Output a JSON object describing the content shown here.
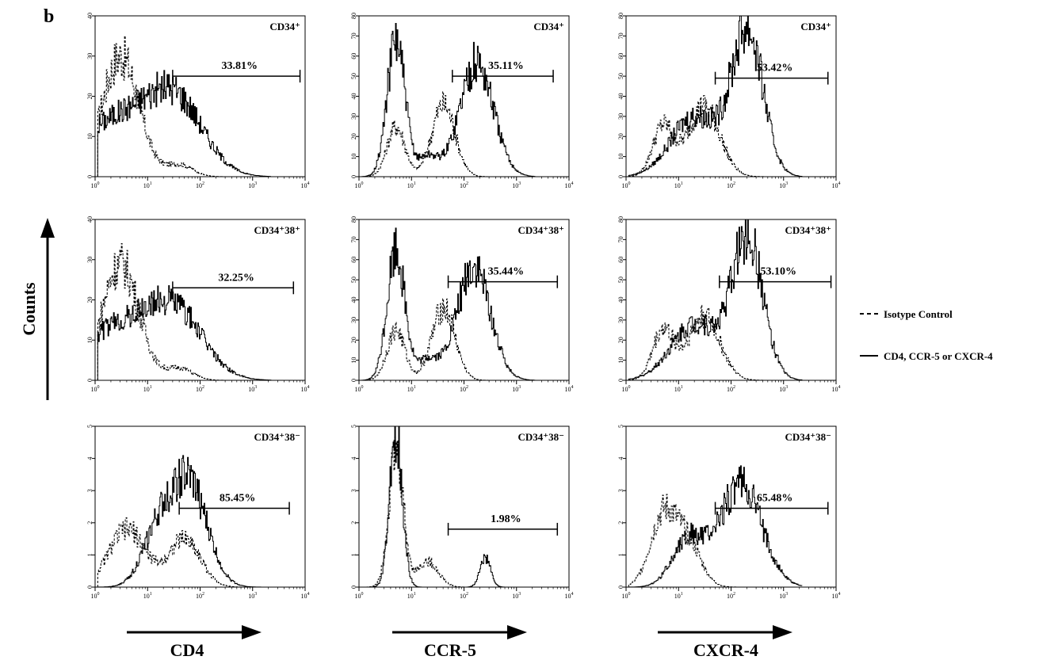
{
  "figure": {
    "panel_letter": "b",
    "y_axis_label": "Counts",
    "x_axis_labels": [
      "CD4",
      "CCR-5",
      "CXCR-4"
    ],
    "legend": {
      "isotype": "Isotype Control",
      "marker": "CD4, CCR-5 or CXCR-4"
    },
    "colors": {
      "ink": "#000000",
      "background": "#ffffff"
    }
  },
  "chart_data": [
    {
      "type": "histogram",
      "row": 0,
      "col": 0,
      "population_label": "CD34⁺",
      "percent_label": "33.81%",
      "x_scale": "log",
      "xlim": [
        1,
        10000
      ],
      "ylim": [
        0,
        40
      ],
      "y_ticks": [
        0,
        10,
        20,
        30,
        40
      ],
      "gate": [
        30,
        8000
      ],
      "gate_y": 25,
      "solid_peaks": [
        {
          "center": 30,
          "height": 20,
          "width": 0.55
        },
        {
          "center": 2,
          "height": 13,
          "width": 0.6
        }
      ],
      "dashed_peaks": [
        {
          "center": 3,
          "height": 30,
          "width": 0.35
        },
        {
          "center": 40,
          "height": 3,
          "width": 0.25
        }
      ]
    },
    {
      "type": "histogram",
      "row": 0,
      "col": 1,
      "population_label": "CD34⁺",
      "percent_label": "35.11%",
      "x_scale": "log",
      "xlim": [
        1,
        10000
      ],
      "ylim": [
        0,
        80
      ],
      "y_ticks": [
        0,
        10,
        20,
        30,
        40,
        50,
        60,
        70,
        80
      ],
      "gate": [
        60,
        5000
      ],
      "gate_y": 50,
      "solid_peaks": [
        {
          "center": 5,
          "height": 68,
          "width": 0.17
        },
        {
          "center": 170,
          "height": 57,
          "width": 0.32
        },
        {
          "center": 20,
          "height": 10,
          "width": 0.2
        }
      ],
      "dashed_peaks": [
        {
          "center": 5,
          "height": 25,
          "width": 0.17
        },
        {
          "center": 40,
          "height": 36,
          "width": 0.22
        }
      ]
    },
    {
      "type": "histogram",
      "row": 0,
      "col": 2,
      "population_label": "CD34⁺",
      "percent_label": "53.42%",
      "x_scale": "log",
      "xlim": [
        1,
        10000
      ],
      "ylim": [
        0,
        80
      ],
      "y_ticks": [
        0,
        10,
        20,
        30,
        40,
        50,
        60,
        70,
        80
      ],
      "gate": [
        50,
        7000
      ],
      "gate_y": 49,
      "solid_peaks": [
        {
          "center": 200,
          "height": 72,
          "width": 0.3
        },
        {
          "center": 20,
          "height": 30,
          "width": 0.45
        }
      ],
      "dashed_peaks": [
        {
          "center": 5,
          "height": 25,
          "width": 0.2
        },
        {
          "center": 30,
          "height": 35,
          "width": 0.3
        }
      ]
    },
    {
      "type": "histogram",
      "row": 1,
      "col": 0,
      "population_label": "CD34⁺38⁺",
      "percent_label": "32.25%",
      "x_scale": "log",
      "xlim": [
        1,
        10000
      ],
      "ylim": [
        0,
        40
      ],
      "y_ticks": [
        0,
        10,
        20,
        30,
        40
      ],
      "gate": [
        30,
        6000
      ],
      "gate_y": 23,
      "solid_peaks": [
        {
          "center": 30,
          "height": 18,
          "width": 0.55
        },
        {
          "center": 2,
          "height": 12,
          "width": 0.6
        }
      ],
      "dashed_peaks": [
        {
          "center": 3,
          "height": 29,
          "width": 0.35
        },
        {
          "center": 40,
          "height": 3,
          "width": 0.25
        }
      ]
    },
    {
      "type": "histogram",
      "row": 1,
      "col": 1,
      "population_label": "CD34⁺38⁺",
      "percent_label": "35.44%",
      "x_scale": "log",
      "xlim": [
        1,
        10000
      ],
      "ylim": [
        0,
        80
      ],
      "y_ticks": [
        0,
        10,
        20,
        30,
        40,
        50,
        60,
        70,
        80
      ],
      "gate": [
        50,
        6000
      ],
      "gate_y": 49,
      "solid_peaks": [
        {
          "center": 5,
          "height": 65,
          "width": 0.17
        },
        {
          "center": 150,
          "height": 56,
          "width": 0.32
        },
        {
          "center": 20,
          "height": 10,
          "width": 0.2
        }
      ],
      "dashed_peaks": [
        {
          "center": 5,
          "height": 25,
          "width": 0.17
        },
        {
          "center": 40,
          "height": 36,
          "width": 0.22
        }
      ]
    },
    {
      "type": "histogram",
      "row": 1,
      "col": 2,
      "population_label": "CD34⁺38⁺",
      "percent_label": "53.10%",
      "x_scale": "log",
      "xlim": [
        1,
        10000
      ],
      "ylim": [
        0,
        80
      ],
      "y_ticks": [
        0,
        10,
        20,
        30,
        40,
        50,
        60,
        70,
        80
      ],
      "gate": [
        60,
        8000
      ],
      "gate_y": 49,
      "solid_peaks": [
        {
          "center": 200,
          "height": 70,
          "width": 0.3
        },
        {
          "center": 20,
          "height": 28,
          "width": 0.45
        }
      ],
      "dashed_peaks": [
        {
          "center": 5,
          "height": 25,
          "width": 0.2
        },
        {
          "center": 30,
          "height": 32,
          "width": 0.3
        }
      ]
    },
    {
      "type": "histogram",
      "row": 2,
      "col": 0,
      "population_label": "CD34⁺38⁻",
      "percent_label": "85.45%",
      "x_scale": "log",
      "xlim": [
        1,
        10000
      ],
      "ylim": [
        0,
        5
      ],
      "y_ticks": [
        0,
        1,
        2,
        3,
        4,
        5
      ],
      "gate": [
        40,
        5000
      ],
      "gate_y": 2.45,
      "solid_peaks": [
        {
          "center": 60,
          "height": 3.2,
          "width": 0.35
        },
        {
          "center": 15,
          "height": 1.5,
          "width": 0.3
        }
      ],
      "dashed_peaks": [
        {
          "center": 4,
          "height": 1.8,
          "width": 0.35
        },
        {
          "center": 50,
          "height": 1.5,
          "width": 0.3
        }
      ]
    },
    {
      "type": "histogram",
      "row": 2,
      "col": 1,
      "population_label": "CD34⁺38⁻",
      "percent_label": "1.98%",
      "x_scale": "log",
      "xlim": [
        1,
        10000
      ],
      "ylim": [
        0,
        5
      ],
      "y_ticks": [
        0,
        1,
        2,
        3,
        4,
        5
      ],
      "gate": [
        50,
        6000
      ],
      "gate_y": 1.8,
      "solid_peaks": [
        {
          "center": 5,
          "height": 4.8,
          "width": 0.12
        },
        {
          "center": 250,
          "height": 0.9,
          "width": 0.1
        }
      ],
      "dashed_peaks": [
        {
          "center": 5,
          "height": 4.2,
          "width": 0.14
        },
        {
          "center": 20,
          "height": 0.8,
          "width": 0.2
        }
      ]
    },
    {
      "type": "histogram",
      "row": 2,
      "col": 2,
      "population_label": "CD34⁺38⁻",
      "percent_label": "65.48%",
      "x_scale": "log",
      "xlim": [
        1,
        10000
      ],
      "ylim": [
        0,
        5
      ],
      "y_ticks": [
        0,
        1,
        2,
        3,
        4,
        5
      ],
      "gate": [
        50,
        7000
      ],
      "gate_y": 2.45,
      "solid_peaks": [
        {
          "center": 150,
          "height": 3.2,
          "width": 0.4
        },
        {
          "center": 15,
          "height": 1.5,
          "width": 0.3
        }
      ],
      "dashed_peaks": [
        {
          "center": 5,
          "height": 2.2,
          "width": 0.25
        },
        {
          "center": 15,
          "height": 1.3,
          "width": 0.25
        }
      ]
    }
  ]
}
